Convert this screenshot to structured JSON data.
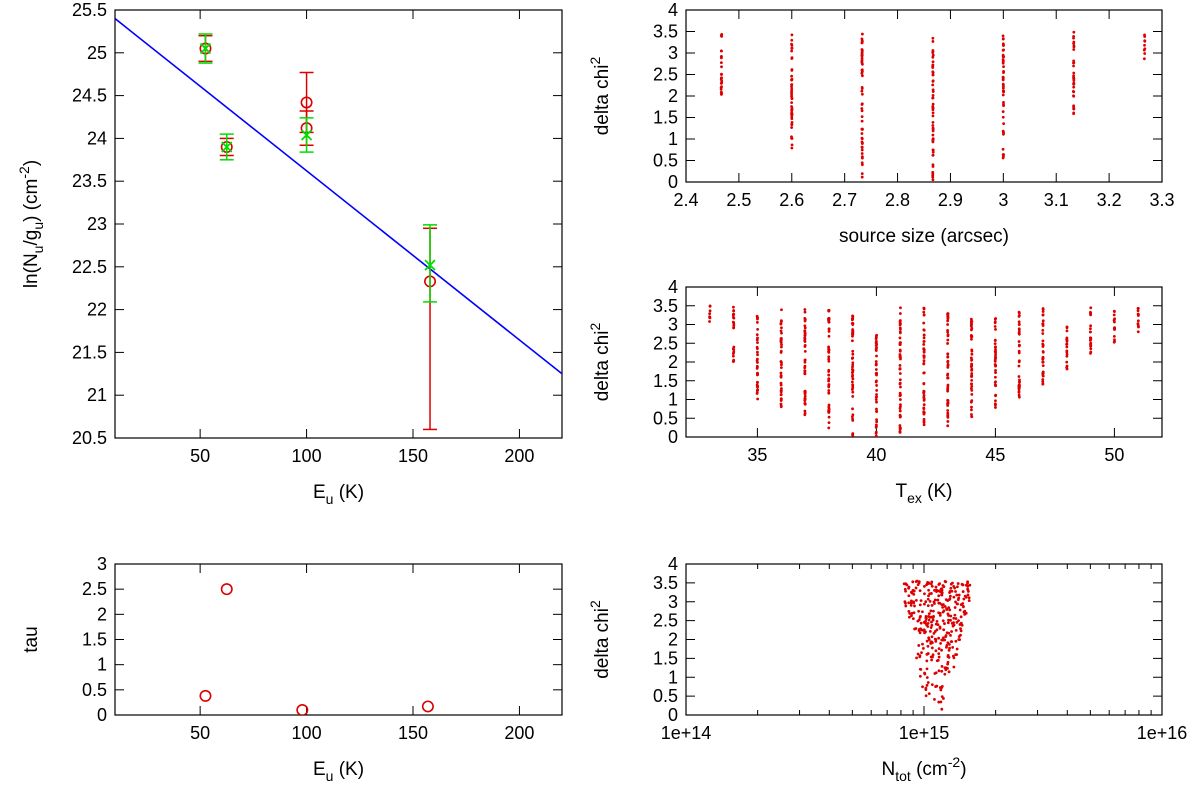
{
  "colors": {
    "fit_line": "#0000ff",
    "series_red": "#dd0000",
    "series_green": "#00dd00",
    "axes": "#000000"
  },
  "chart_data": [
    {
      "id": "rotation",
      "type": "scatter",
      "xlim": [
        10,
        220
      ],
      "ylim": [
        20.5,
        25.5
      ],
      "xticks": [
        50,
        100,
        150,
        200
      ],
      "yticks": [
        20.5,
        21,
        21.5,
        22,
        22.5,
        23,
        23.5,
        24,
        24.5,
        25,
        25.5
      ],
      "xtick_labels": [
        "50",
        "100",
        "150",
        "200"
      ],
      "ytick_labels": [
        "20.5",
        "21",
        "21.5",
        "22",
        "22.5",
        "23",
        "23.5",
        "24",
        "24.5",
        "25",
        "25.5"
      ],
      "xlabel": {
        "main": "E",
        "sub": "u",
        "tail": " (K)"
      },
      "ylabel": {
        "t1": "ln(N",
        "s1": "u",
        "t2": "/g",
        "s2": "u",
        "t3": ") (cm",
        "sup": "-2",
        "t4": ")"
      },
      "fit_line": {
        "x": [
          10,
          220
        ],
        "y": [
          25.4,
          21.25
        ]
      },
      "series": [
        {
          "marker": "circle",
          "x": [
            52.5,
            62.5,
            100,
            100,
            158
          ],
          "y": [
            25.05,
            23.9,
            24.42,
            24.12,
            22.33
          ],
          "err_low": [
            0.15,
            0.1,
            0.35,
            0.2,
            1.73
          ],
          "err_high": [
            0.15,
            0.1,
            0.35,
            0.2,
            0.62
          ]
        },
        {
          "marker": "cross",
          "x": [
            52.5,
            62.5,
            100,
            158
          ],
          "y": [
            25.05,
            23.9,
            24.04,
            22.52
          ],
          "err_low": [
            0.17,
            0.15,
            0.2,
            0.43
          ],
          "err_high": [
            0.17,
            0.15,
            0.2,
            0.47
          ]
        }
      ]
    },
    {
      "id": "tau",
      "type": "scatter",
      "xlim": [
        10,
        220
      ],
      "ylim": [
        0,
        3
      ],
      "xticks": [
        50,
        100,
        150,
        200
      ],
      "yticks": [
        0,
        0.5,
        1,
        1.5,
        2,
        2.5,
        3
      ],
      "xtick_labels": [
        "50",
        "100",
        "150",
        "200"
      ],
      "ytick_labels": [
        "0",
        "0.5",
        "1",
        "1.5",
        "2",
        "2.5",
        "3"
      ],
      "xlabel": {
        "main": "E",
        "sub": "u",
        "tail": " (K)"
      },
      "ylabel": "tau",
      "series": [
        {
          "marker": "circle",
          "x": [
            52.5,
            62.5,
            98,
            157
          ],
          "y": [
            0.38,
            2.5,
            0.1,
            0.17
          ]
        }
      ]
    },
    {
      "id": "size",
      "type": "scatter",
      "xlim": [
        2.4,
        3.3
      ],
      "ylim": [
        0,
        4
      ],
      "xticks": [
        2.4,
        2.5,
        2.6,
        2.7,
        2.8,
        2.9,
        3.0,
        3.1,
        3.2,
        3.3
      ],
      "yticks": [
        0,
        0.5,
        1,
        1.5,
        2,
        2.5,
        3,
        3.5,
        4
      ],
      "xtick_labels": [
        "2.4",
        "2.5",
        "2.6",
        "2.7",
        "2.8",
        "2.9",
        "3",
        "3.1",
        "3.2",
        "3.3"
      ],
      "ytick_labels": [
        "0",
        "0.5",
        "1",
        "1.5",
        "2",
        "2.5",
        "3",
        "3.5",
        "4"
      ],
      "xlabel": "source size (arcsec)",
      "ylabel": {
        "main": "delta chi",
        "sup": "2"
      },
      "columns": [
        {
          "x": 2.467,
          "y_min": 1.9,
          "y_max": 3.45
        },
        {
          "x": 2.6,
          "y_min": 0.65,
          "y_max": 3.5
        },
        {
          "x": 2.733,
          "y_min": 0.05,
          "y_max": 3.45
        },
        {
          "x": 2.867,
          "y_min": 0.0,
          "y_max": 3.4
        },
        {
          "x": 3.0,
          "y_min": 0.5,
          "y_max": 3.45
        },
        {
          "x": 3.133,
          "y_min": 1.5,
          "y_max": 3.5
        },
        {
          "x": 3.267,
          "y_min": 2.85,
          "y_max": 3.5
        }
      ]
    },
    {
      "id": "tex",
      "type": "scatter",
      "xlim": [
        32,
        52
      ],
      "ylim": [
        0,
        4
      ],
      "xticks": [
        35,
        40,
        45,
        50
      ],
      "yticks": [
        0,
        0.5,
        1,
        1.5,
        2,
        2.5,
        3,
        3.5,
        4
      ],
      "xtick_labels": [
        "35",
        "40",
        "45",
        "50"
      ],
      "ytick_labels": [
        "0",
        "0.5",
        "1",
        "1.5",
        "2",
        "2.5",
        "3",
        "3.5",
        "4"
      ],
      "xlabel": {
        "main": "T",
        "sub": "ex",
        "tail": " (K)"
      },
      "ylabel": {
        "main": "delta chi",
        "sup": "2"
      },
      "columns": [
        {
          "x": 33,
          "y_min": 3.0,
          "y_max": 3.5
        },
        {
          "x": 34,
          "y_min": 2.0,
          "y_max": 3.5
        },
        {
          "x": 35,
          "y_min": 1.0,
          "y_max": 3.3
        },
        {
          "x": 36,
          "y_min": 0.8,
          "y_max": 3.45
        },
        {
          "x": 37,
          "y_min": 0.5,
          "y_max": 3.4
        },
        {
          "x": 38,
          "y_min": 0.2,
          "y_max": 3.4
        },
        {
          "x": 39,
          "y_min": 0.0,
          "y_max": 3.4
        },
        {
          "x": 40,
          "y_min": 0.0,
          "y_max": 2.75
        },
        {
          "x": 41,
          "y_min": 0.05,
          "y_max": 3.5
        },
        {
          "x": 42,
          "y_min": 0.3,
          "y_max": 3.45
        },
        {
          "x": 43,
          "y_min": 0.3,
          "y_max": 3.3
        },
        {
          "x": 44,
          "y_min": 0.5,
          "y_max": 3.4
        },
        {
          "x": 45,
          "y_min": 0.7,
          "y_max": 3.2
        },
        {
          "x": 46,
          "y_min": 1.0,
          "y_max": 3.4
        },
        {
          "x": 47,
          "y_min": 1.4,
          "y_max": 3.45
        },
        {
          "x": 48,
          "y_min": 1.8,
          "y_max": 3.0
        },
        {
          "x": 49,
          "y_min": 2.2,
          "y_max": 3.5
        },
        {
          "x": 50,
          "y_min": 2.5,
          "y_max": 3.5
        },
        {
          "x": 51,
          "y_min": 2.7,
          "y_max": 3.45
        }
      ]
    },
    {
      "id": "ntot",
      "type": "scatter",
      "xscale": "log",
      "xlim": [
        100000000000000.0,
        1e+16
      ],
      "ylim": [
        0,
        4
      ],
      "xticks": [
        100000000000000.0,
        1000000000000000.0,
        1e+16
      ],
      "yticks": [
        0,
        0.5,
        1,
        1.5,
        2,
        2.5,
        3,
        3.5,
        4
      ],
      "xtick_labels": [
        "1e+14",
        "1e+15",
        "1e+16"
      ],
      "ytick_labels": [
        "0",
        "0.5",
        "1",
        "1.5",
        "2",
        "2.5",
        "3",
        "3.5",
        "4"
      ],
      "xlabel": {
        "main": "N",
        "sub": "tot",
        "tail": " (cm",
        "sup": "-2",
        "tail2": ")"
      },
      "ylabel": {
        "main": "delta chi",
        "sup": "2"
      },
      "cloud": {
        "x_min": 810000000000000.0,
        "x_max": 1580000000000000.0,
        "x_center": 1120000000000000.0,
        "y_max": 3.55
      }
    }
  ]
}
